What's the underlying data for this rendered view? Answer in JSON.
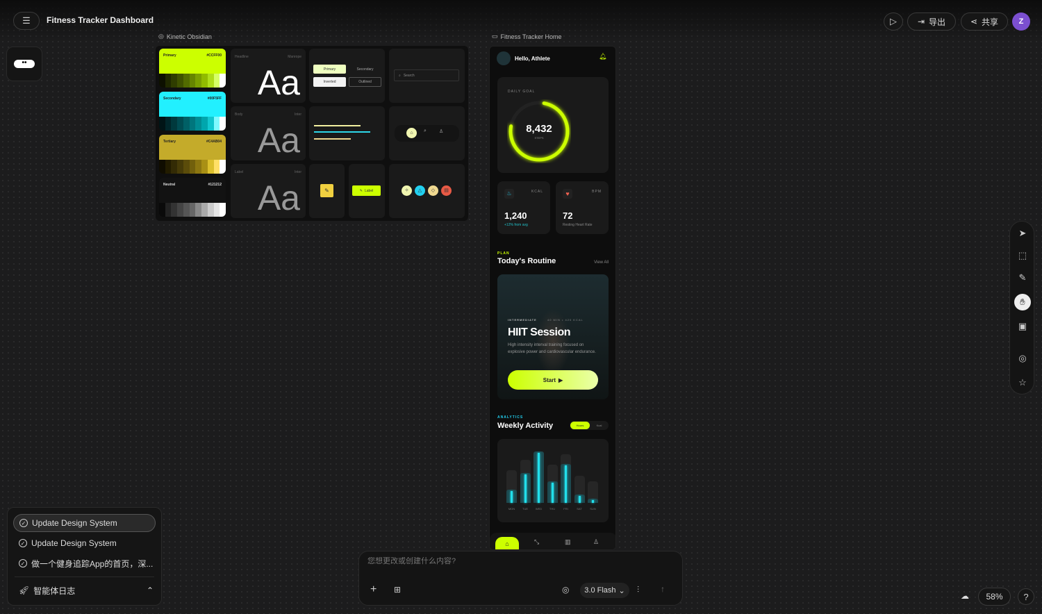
{
  "header": {
    "title": "Fitness Tracker Dashboard",
    "export_label": "导出",
    "share_label": "共享",
    "avatar_letter": "Z"
  },
  "frames": {
    "design_system": "Kinetic Obsidian",
    "home": "Fitness Tracker Home"
  },
  "design_system": {
    "swatches": [
      {
        "name": "Primary",
        "hex": "#CCFF00",
        "color": "#ccff00",
        "shades": [
          "#0d1000",
          "#1f2800",
          "#2f3d00",
          "#3f5200",
          "#526b00",
          "#668500",
          "#7a9f00",
          "#90bb00",
          "#aede1a",
          "#d6ff66",
          "#ffffff"
        ]
      },
      {
        "name": "Secondary",
        "hex": "#00F5FF",
        "color": "#22f0ff",
        "shades": [
          "#001416",
          "#00262a",
          "#00393d",
          "#004c52",
          "#006066",
          "#00767d",
          "#008d94",
          "#00a6ad",
          "#12c8d0",
          "#80faff",
          "#ffffff"
        ]
      },
      {
        "name": "Tertiary",
        "hex": "#C4AB04",
        "color": "#c4ab2a",
        "shades": [
          "#100d00",
          "#221c00",
          "#332b05",
          "#463b08",
          "#5b4c0a",
          "#72600c",
          "#8c7610",
          "#a99015",
          "#dcc02d",
          "#ffe066",
          "#ffffff"
        ]
      },
      {
        "name": "Neutral",
        "hex": "#121212",
        "color": "#121212",
        "shades": [
          "#0a0a0a",
          "#222",
          "#333",
          "#444",
          "#555",
          "#666",
          "#888",
          "#aaa",
          "#ccc",
          "#e6e6e6",
          "#fff"
        ]
      }
    ],
    "typography": [
      {
        "role": "Headline",
        "font": "Manrope",
        "sample": "Aa"
      },
      {
        "role": "Body",
        "font": "Inter",
        "sample": "Aa"
      },
      {
        "role": "Label",
        "font": "Inter",
        "sample": "Aa"
      }
    ],
    "buttons": {
      "primary": "Primary",
      "secondary": "Secondary",
      "inverted": "Inverted",
      "outlined": "Outlined"
    },
    "search_placeholder": "Search",
    "chip_label": "Label"
  },
  "home": {
    "greeting": "Hello, Athlete",
    "daily_goal": {
      "label": "DAILY GOAL",
      "value": "8,432",
      "unit": "STEPS",
      "progress": 0.75
    },
    "kcal": {
      "unit": "KCAL",
      "value": "1,240",
      "note": "+12% from avg"
    },
    "bpm": {
      "unit": "BPM",
      "value": "72",
      "note": "Resting Heart Rate"
    },
    "plan": {
      "eyebrow": "PLAN",
      "title": "Today's Routine",
      "view_all": "View All",
      "level": "INTERMEDIATE",
      "meta": "40 MIN • 420 KCAL",
      "session": "HIIT Session",
      "desc": "High intensity interval training focused on explosive power and cardiovascular endurance.",
      "start": "Start"
    },
    "analytics": {
      "eyebrow": "ANALYTICS",
      "title": "Weekly Activity",
      "toggle": [
        "Hours",
        "Kcal"
      ]
    }
  },
  "chart_data": {
    "type": "bar",
    "categories": [
      "MON",
      "TUE",
      "WED",
      "THU",
      "FRI",
      "SAT",
      "SUN"
    ],
    "labels": [
      "MON",
      "TUE",
      "WED",
      "THU",
      "FRI",
      "SAT",
      "SUN"
    ],
    "values": [
      0.25,
      0.55,
      0.95,
      0.4,
      0.72,
      0.15,
      0.08
    ],
    "track": [
      0.6,
      0.8,
      0.95,
      0.7,
      0.9,
      0.5,
      0.4
    ]
  },
  "colors": {
    "accent": "#ccff00",
    "secondary": "#00f5ff",
    "avatar": "#7b4fd0"
  },
  "tasks": {
    "items": [
      "Update Design System",
      "Update Design System",
      "做一个健身追踪App的首页，深..."
    ],
    "footer": "智能体日志"
  },
  "prompt": {
    "placeholder": "您想更改或创建什么内容?",
    "model": "3.0 Flash"
  },
  "zoom": "58%"
}
